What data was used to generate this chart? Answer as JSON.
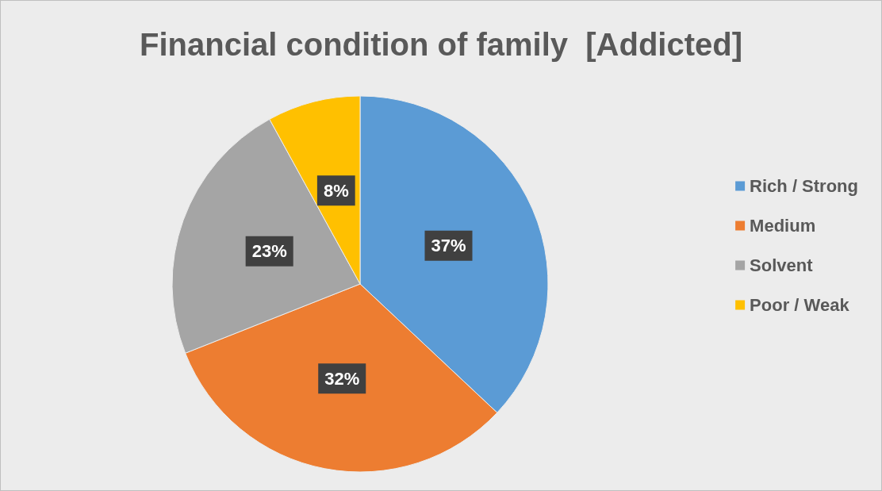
{
  "chart_data": {
    "type": "pie",
    "title": "Financial condition of family  [Addicted]",
    "categories": [
      "Rich / Strong",
      "Medium",
      "Solvent",
      "Poor / Weak"
    ],
    "values": [
      37,
      32,
      23,
      8
    ],
    "colors": [
      "#5b9bd5",
      "#ed7d31",
      "#a5a5a5",
      "#ffc000"
    ],
    "value_labels": [
      "37%",
      "32%",
      "23%",
      "8%"
    ],
    "legend": "right"
  }
}
